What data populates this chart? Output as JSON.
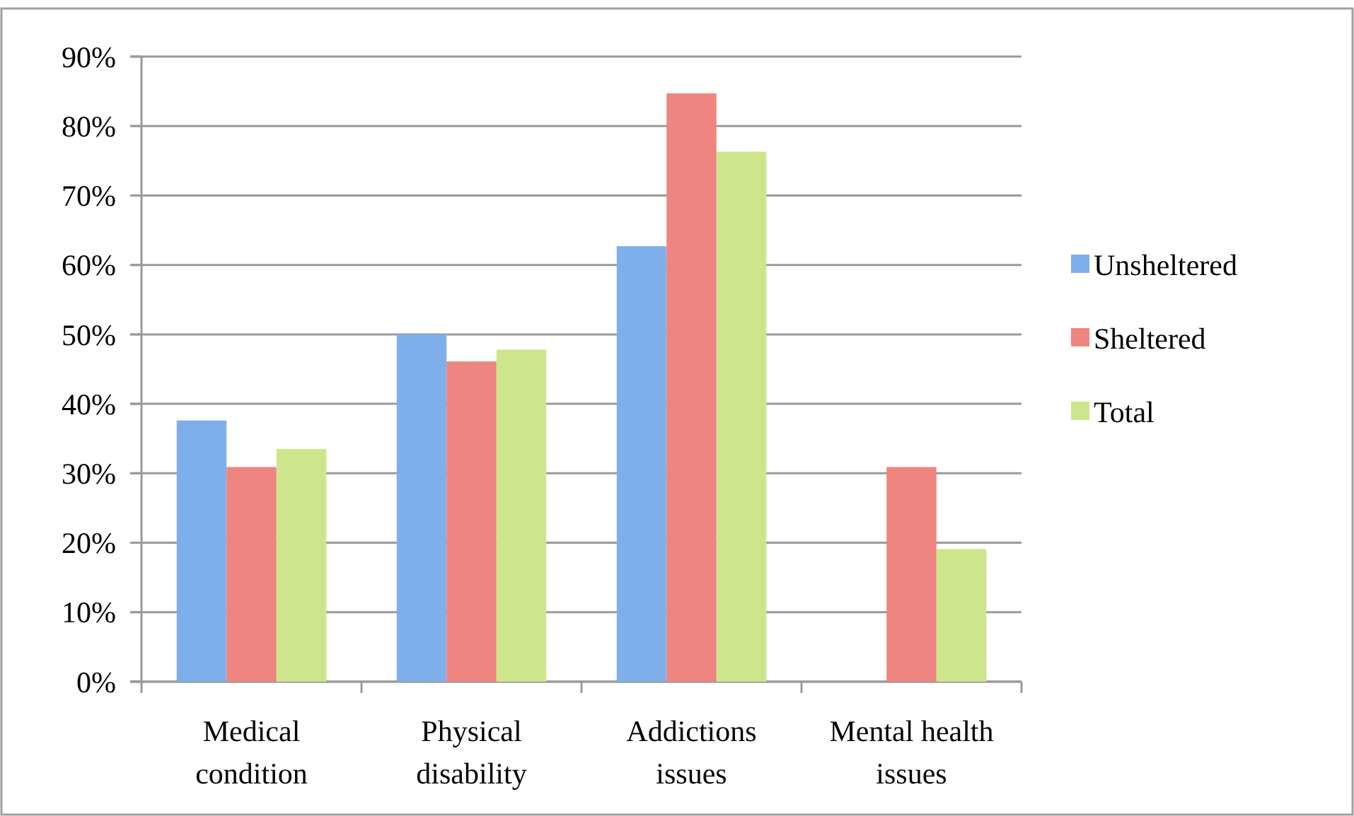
{
  "chart_data": {
    "type": "bar",
    "categories": [
      "Medical condition",
      "Physical disability",
      "Addictions issues",
      "Mental health issues"
    ],
    "series": [
      {
        "name": "Unsheltered",
        "color": "#7fafea",
        "values": [
          37.6,
          50.0,
          62.7,
          null
        ]
      },
      {
        "name": "Sheltered",
        "color": "#ee8580",
        "values": [
          30.9,
          46.1,
          84.7,
          30.9
        ]
      },
      {
        "name": "Total",
        "color": "#cde68c",
        "values": [
          33.5,
          47.8,
          76.3,
          19.1
        ]
      }
    ],
    "ylim": [
      0,
      90
    ],
    "yticks": [
      {
        "value": 0,
        "label": "0%"
      },
      {
        "value": 10,
        "label": "10%"
      },
      {
        "value": 20,
        "label": "20%"
      },
      {
        "value": 30,
        "label": "30%"
      },
      {
        "value": 40,
        "label": "40%"
      },
      {
        "value": 50,
        "label": "50%"
      },
      {
        "value": 60,
        "label": "60%"
      },
      {
        "value": 70,
        "label": "70%"
      },
      {
        "value": 80,
        "label": "80%"
      },
      {
        "value": 90,
        "label": "90%"
      }
    ],
    "grid": "y",
    "legend": "right"
  }
}
